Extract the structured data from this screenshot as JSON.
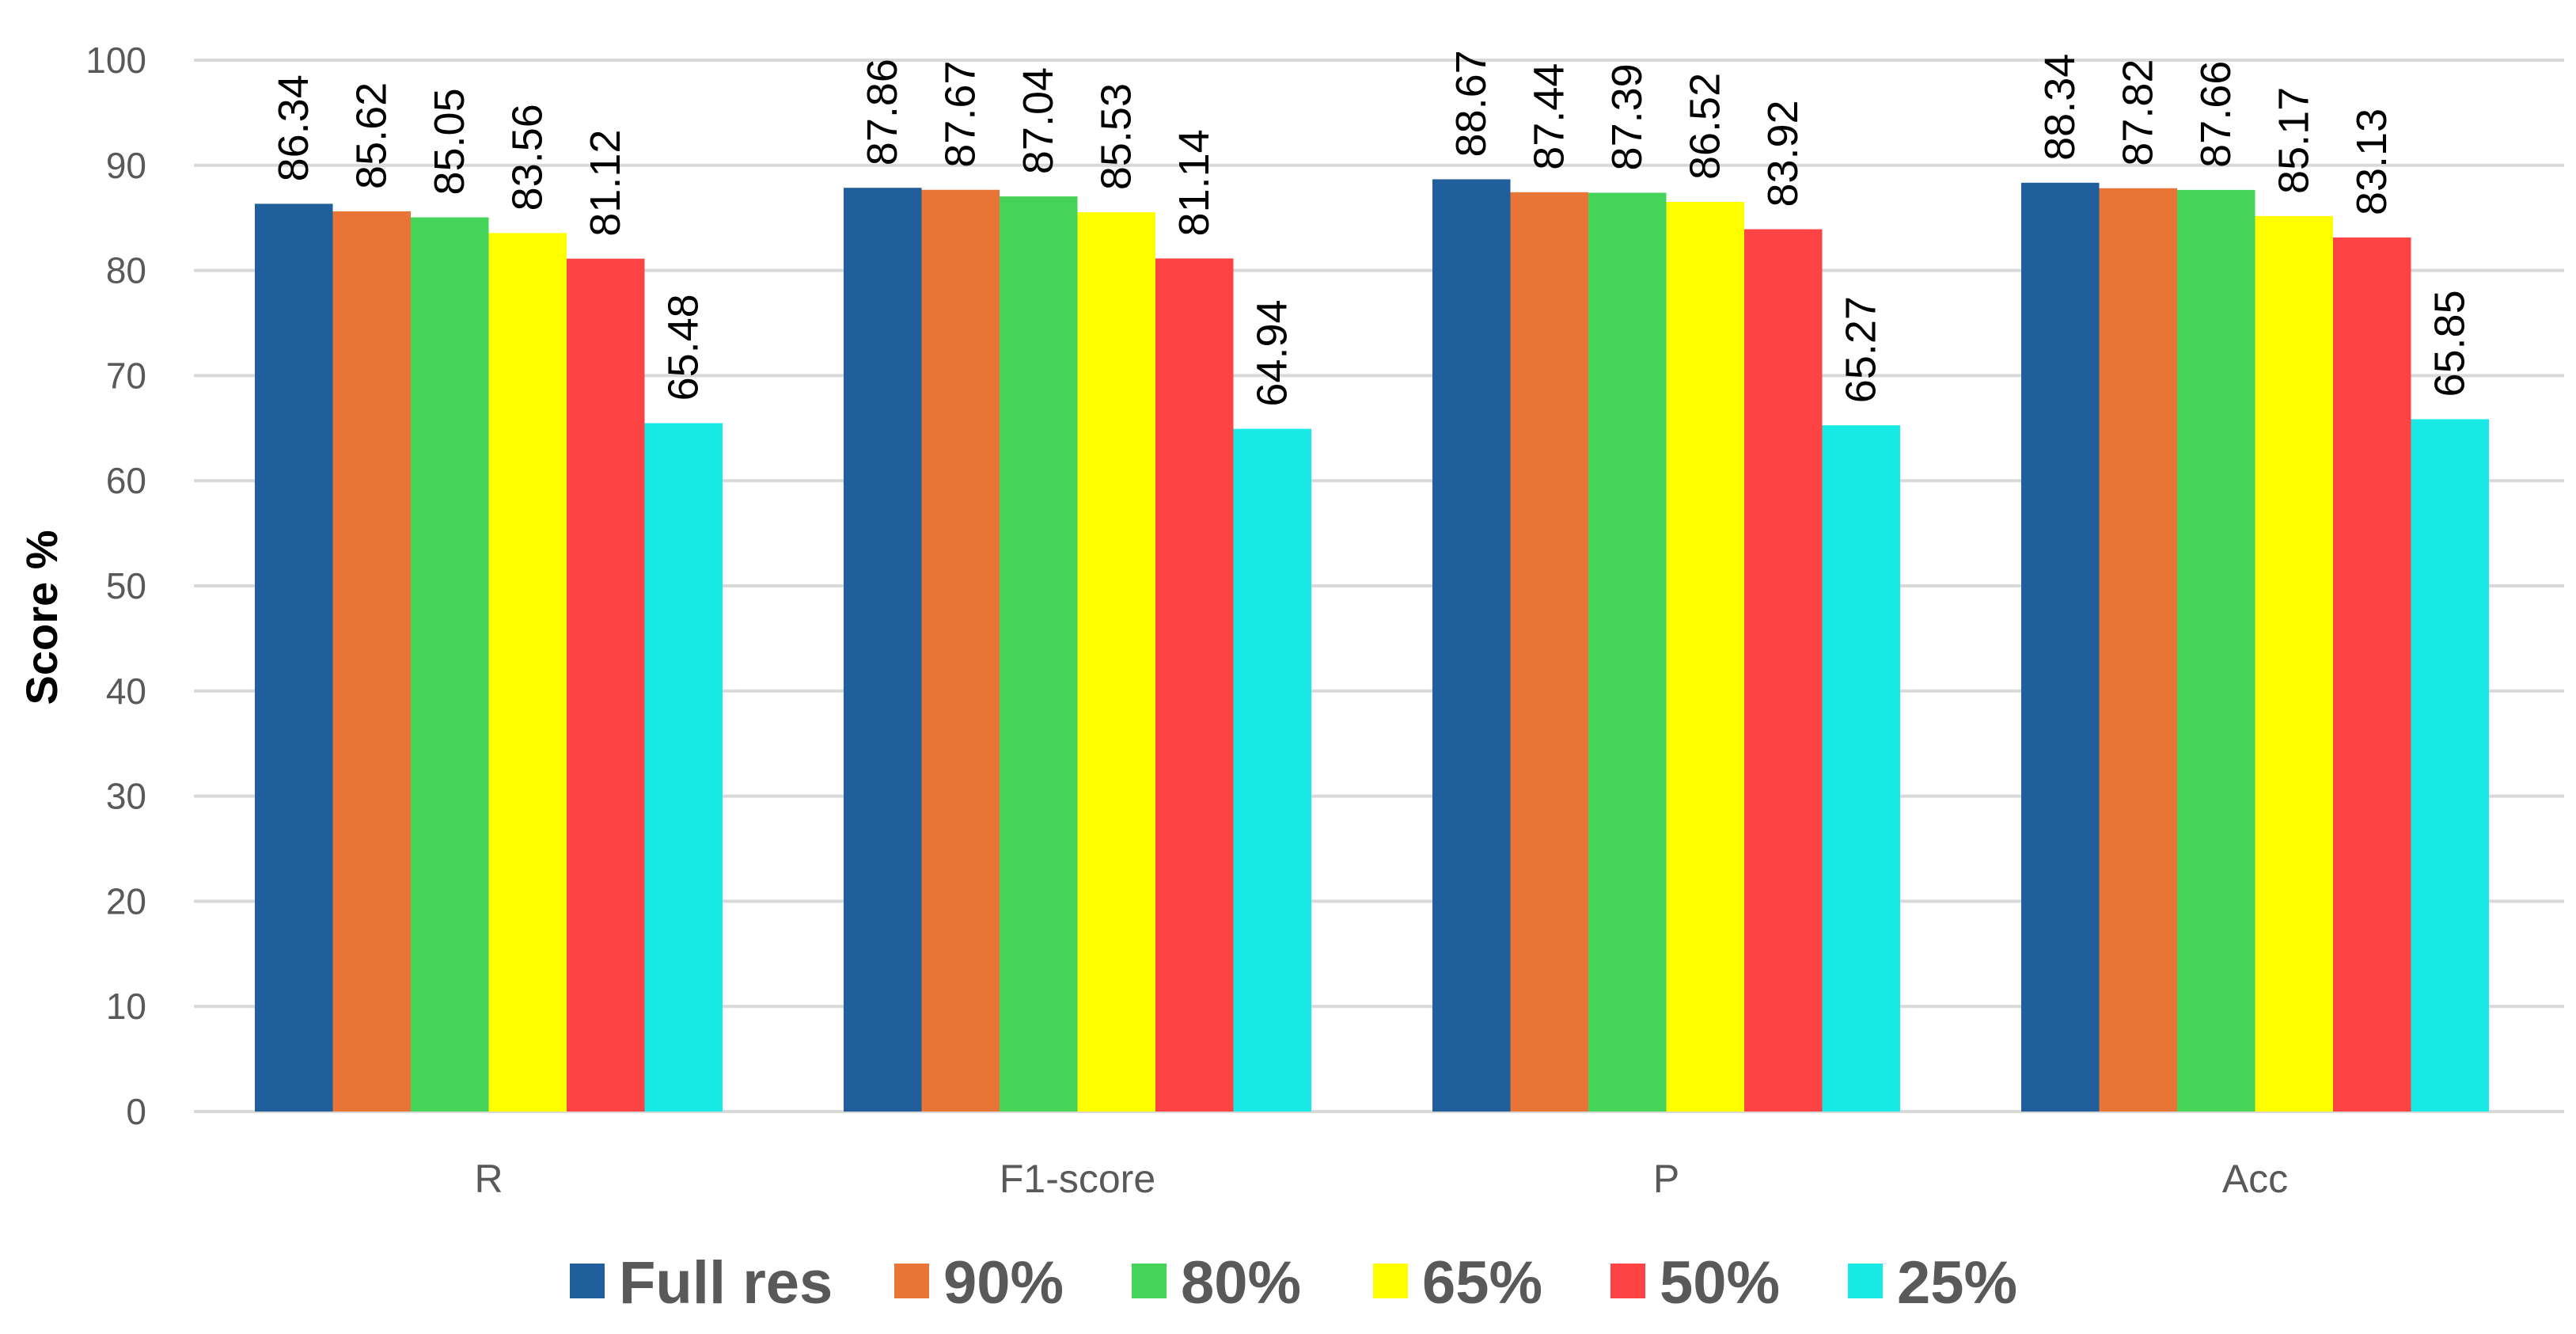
{
  "chart_data": {
    "type": "bar",
    "title": "",
    "xlabel": "",
    "ylabel": "Score %",
    "ylim": [
      0,
      100
    ],
    "yticks": [
      0,
      10,
      20,
      30,
      40,
      50,
      60,
      70,
      80,
      90,
      100
    ],
    "grid": true,
    "legend_position": "bottom",
    "categories": [
      "R",
      "F1-score",
      "P",
      "Acc"
    ],
    "series": [
      {
        "name": "Full res",
        "color": "#205e9c",
        "values": [
          86.34,
          87.86,
          88.67,
          88.34
        ],
        "labels": [
          "86.34",
          "87.86",
          "88.67",
          "88.34"
        ]
      },
      {
        "name": "90%",
        "color": "#e87435",
        "values": [
          85.62,
          87.67,
          87.44,
          87.82
        ],
        "labels": [
          "85.62",
          "87.67",
          "87.44",
          "87.82"
        ]
      },
      {
        "name": "80%",
        "color": "#45d35a",
        "values": [
          85.05,
          87.04,
          87.39,
          87.66
        ],
        "labels": [
          "85.05",
          "87.04",
          "87.39",
          "87.66"
        ]
      },
      {
        "name": "65%",
        "color": "#ffff00",
        "values": [
          83.56,
          85.53,
          86.52,
          85.17
        ],
        "labels": [
          "83.56",
          "85.53",
          "86.52",
          "85.17"
        ]
      },
      {
        "name": "50%",
        "color": "#fd4343",
        "values": [
          81.12,
          81.14,
          83.92,
          83.13
        ],
        "labels": [
          "81.12",
          "81.14",
          "83.92",
          "83.13"
        ]
      },
      {
        "name": "25%",
        "color": "#1aeae6",
        "values": [
          65.48,
          64.94,
          65.27,
          65.85
        ],
        "labels": [
          "65.48",
          "64.94",
          "65.27",
          "65.85"
        ]
      }
    ]
  }
}
